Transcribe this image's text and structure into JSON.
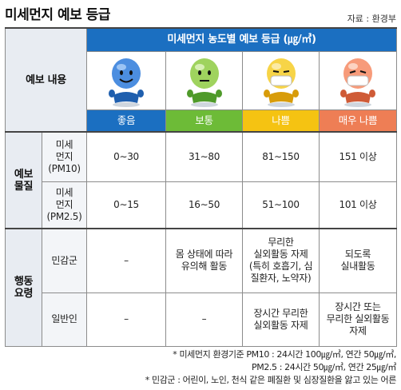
{
  "title": "미세먼지 예보 등급",
  "source": "자료 : 환경부",
  "header": {
    "forecast_content": "예보 내용",
    "concentration_title": "미세먼지 농도별 예보 등급 (㎍/㎥)"
  },
  "levels": [
    {
      "label": "좋음",
      "color": "#1b6fc1"
    },
    {
      "label": "보통",
      "color": "#6dbb37"
    },
    {
      "label": "나쁨",
      "color": "#f5c312"
    },
    {
      "label": "매우 나쁨",
      "color": "#ee7e55"
    }
  ],
  "forecast_substance": {
    "label_line1": "예보",
    "label_line2": "물질",
    "rows": [
      {
        "name_line1": "미세",
        "name_line2": "먼지",
        "name_line3": "(PM10)",
        "values": [
          "0∼30",
          "31∼80",
          "81∼150",
          "151 이상"
        ]
      },
      {
        "name_line1": "미세",
        "name_line2": "먼지",
        "name_line3": "(PM2.5)",
        "values": [
          "0∼15",
          "16∼50",
          "51∼100",
          "101 이상"
        ]
      }
    ]
  },
  "action_guidelines": {
    "label_line1": "행동",
    "label_line2": "요령",
    "rows": [
      {
        "group": "민감군",
        "values": [
          "–",
          "몸 상태에 따라|유의해 활동",
          "무리한|실외활동 자제|(특히 호흡기, 심|질환자, 노약자)",
          "되도록|실내활동"
        ]
      },
      {
        "group": "일반인",
        "values": [
          "–",
          "–",
          "장시간 무리한|실외활동 자제",
          "장시간 또는|무리한 실외활동|자제"
        ]
      }
    ]
  },
  "footnotes": [
    "* 미세먼지 환경기준 PM10 : 24시간 100㎍/㎥, 연간 50㎍/㎥,",
    "PM2.5 : 24시간 50㎍/㎥, 연간 25㎍/㎥",
    "* 민감군 : 어린이, 노인, 천식 같은 폐질환 및 심장질환을 앓고 있는 어른"
  ]
}
